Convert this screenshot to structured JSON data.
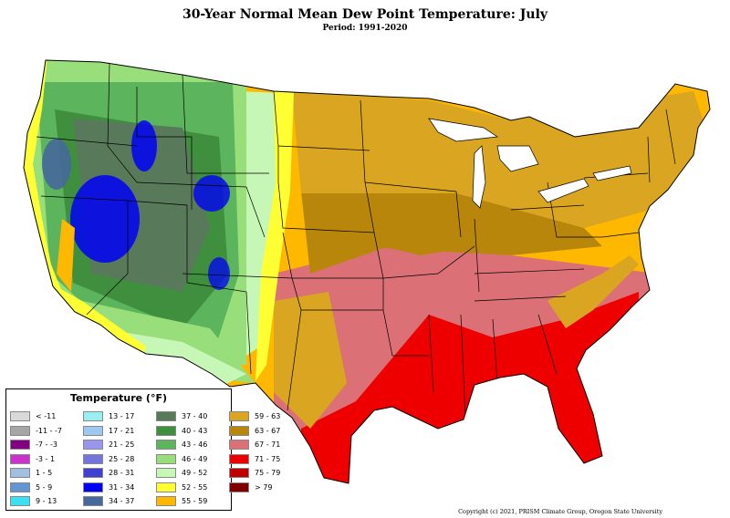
{
  "title": "30-Year Normal Mean Dew Point Temperature: July",
  "subtitle": "Period: 1991-2020",
  "copyright": "Copyright (c) 2021, PRISM Climate Group, Oregon State University",
  "legend": {
    "title": "Temperature (°F)",
    "items": [
      {
        "label": "< -11",
        "color": "#d9d9d9"
      },
      {
        "label": "-11 - -7",
        "color": "#a6a6a6"
      },
      {
        "label": "-7 - -3",
        "color": "#800080"
      },
      {
        "label": "-3 - 1",
        "color": "#cc33cc"
      },
      {
        "label": "1 - 5",
        "color": "#a3bfdf"
      },
      {
        "label": "5 - 9",
        "color": "#6495d0"
      },
      {
        "label": "9 - 13",
        "color": "#3de0f0"
      },
      {
        "label": "13 - 17",
        "color": "#99eef2"
      },
      {
        "label": "17 - 21",
        "color": "#9ec8f0"
      },
      {
        "label": "21 - 25",
        "color": "#9a96ee"
      },
      {
        "label": "25 - 28",
        "color": "#7474dc"
      },
      {
        "label": "28 - 31",
        "color": "#4040d2"
      },
      {
        "label": "31 - 34",
        "color": "#0000f5"
      },
      {
        "label": "34 - 37",
        "color": "#46689a"
      },
      {
        "label": "37 - 40",
        "color": "#587a5a"
      },
      {
        "label": "40 - 43",
        "color": "#3f8f3f"
      },
      {
        "label": "43 - 46",
        "color": "#5cb45c"
      },
      {
        "label": "46 - 49",
        "color": "#98de7a"
      },
      {
        "label": "49 - 52",
        "color": "#c6f7b6"
      },
      {
        "label": "52 - 55",
        "color": "#ffff33"
      },
      {
        "label": "55 - 59",
        "color": "#ffb800"
      },
      {
        "label": "59 - 63",
        "color": "#daa520"
      },
      {
        "label": "63 - 67",
        "color": "#b8860b"
      },
      {
        "label": "67 - 71",
        "color": "#db7077"
      },
      {
        "label": "71 - 75",
        "color": "#ee0000"
      },
      {
        "label": "75 - 79",
        "color": "#c00000"
      },
      {
        "label": "> 79",
        "color": "#800000"
      }
    ]
  }
}
